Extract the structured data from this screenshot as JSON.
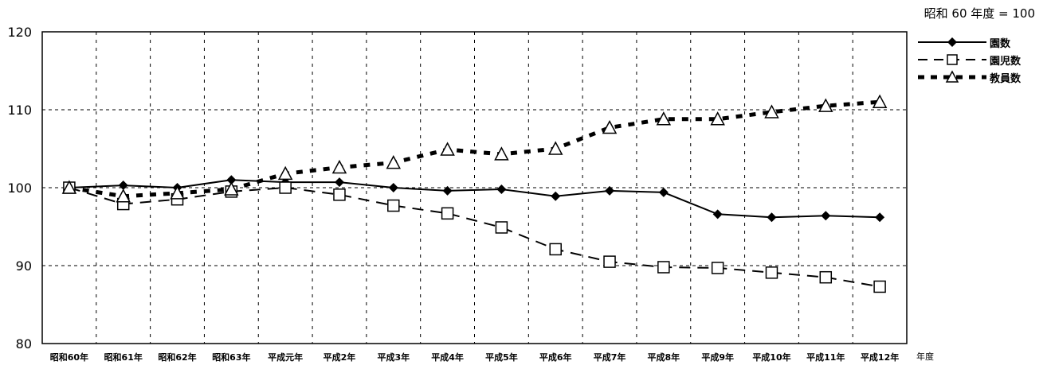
{
  "chart_data": {
    "type": "line",
    "note": "昭和 60 年度 = 100",
    "xlabel": "年度",
    "ylabel": "",
    "ylim": [
      80,
      120
    ],
    "yticks": [
      80,
      90,
      100,
      110,
      120
    ],
    "grid": true,
    "legend_position": "right",
    "categories": [
      "昭和60年",
      "昭和61年",
      "昭和62年",
      "昭和63年",
      "平成元年",
      "平成2年",
      "平成3年",
      "平成4年",
      "平成5年",
      "平成6年",
      "平成7年",
      "平成8年",
      "平成9年",
      "平成10年",
      "平成11年",
      "平成12年"
    ],
    "series": [
      {
        "name": "園数",
        "style": "solid",
        "marker": "diamond-filled",
        "values": [
          100,
          100.3,
          100,
          101,
          100.7,
          100.7,
          100,
          99.6,
          99.8,
          98.9,
          99.6,
          99.4,
          96.6,
          96.2,
          96.4,
          96.2
        ]
      },
      {
        "name": "園児数",
        "style": "dashed",
        "marker": "square-open",
        "values": [
          100,
          97.9,
          98.5,
          99.5,
          100,
          99.1,
          97.7,
          96.7,
          94.9,
          92.1,
          90.5,
          89.8,
          89.7,
          89.1,
          88.5,
          87.3
        ]
      },
      {
        "name": "教員数",
        "style": "dotted",
        "marker": "triangle-open",
        "values": [
          100,
          98.9,
          99.3,
          99.8,
          101.8,
          102.6,
          103.2,
          104.9,
          104.3,
          105,
          107.7,
          108.8,
          108.8,
          109.7,
          110.5,
          111
        ]
      }
    ]
  }
}
